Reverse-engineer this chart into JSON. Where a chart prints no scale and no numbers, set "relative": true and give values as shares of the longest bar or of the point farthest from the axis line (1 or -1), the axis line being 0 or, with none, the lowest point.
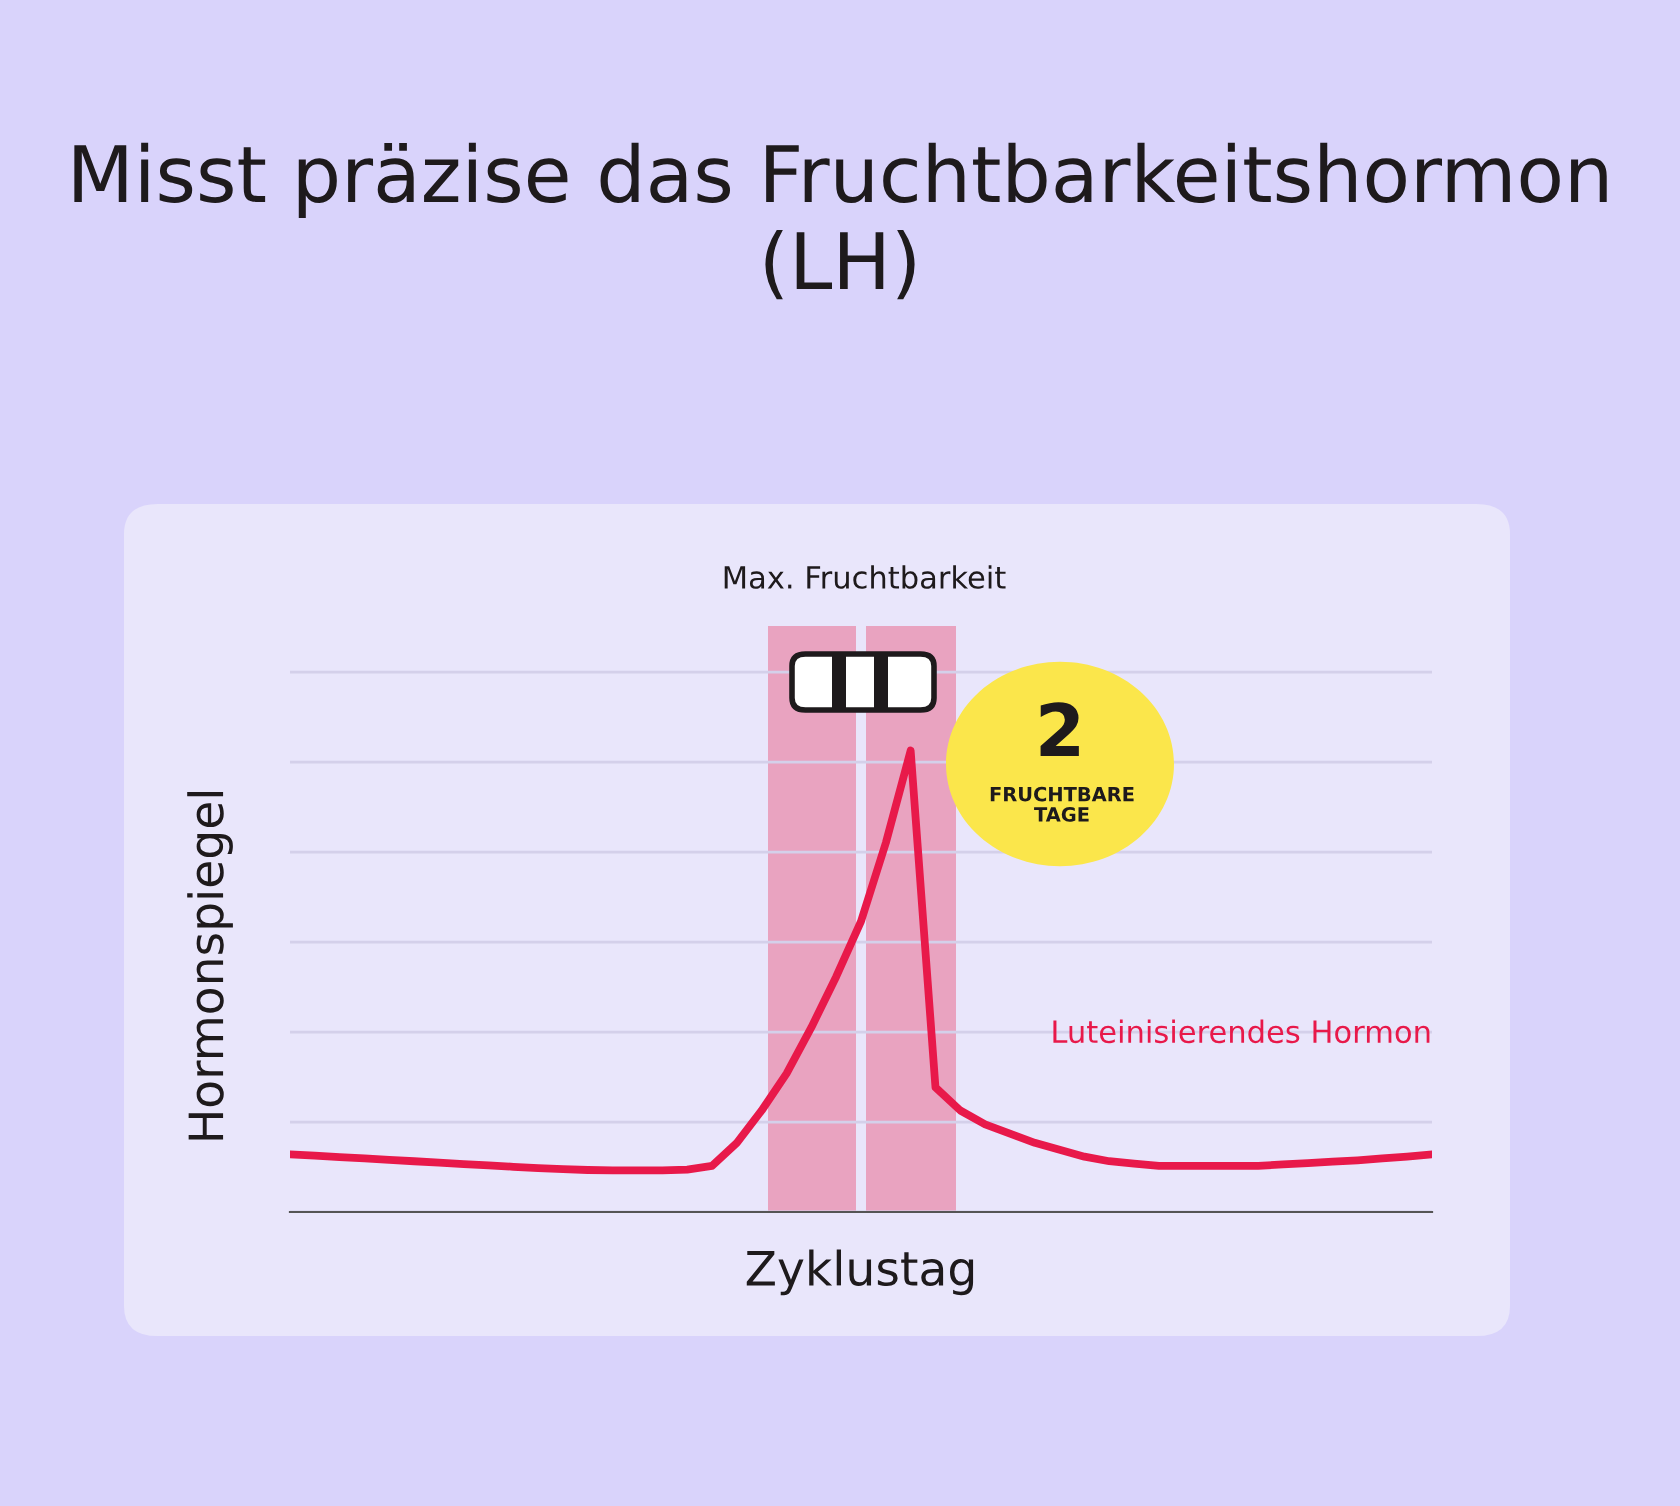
{
  "chart_data": {
    "type": "line",
    "title": "Misst präzise das Fruchtbarkeitshormon (LH)",
    "xlabel": "Zyklustag",
    "ylabel": "Hormonspiegel",
    "relative": true,
    "grid": "y",
    "legend": false,
    "marker": "none",
    "line_style": "solid",
    "categories": [
      null,
      null,
      null,
      null,
      null,
      null,
      null,
      null,
      null,
      null,
      null,
      null,
      null,
      null,
      null,
      null,
      null,
      null,
      null,
      null,
      null,
      null,
      null,
      null,
      null,
      null,
      null,
      null,
      null,
      null,
      null,
      null,
      null,
      null,
      null,
      null,
      null,
      null,
      null,
      null,
      null,
      null,
      null,
      null,
      null,
      null,
      null
    ],
    "series": [
      {
        "name": "Luteinisierendes Hormon",
        "color": "#e8194a",
        "values": [
          0.125,
          0.122,
          0.119,
          0.116,
          0.113,
          0.11,
          0.107,
          0.104,
          0.101,
          0.098,
          0.095,
          0.093,
          0.091,
          0.09,
          0.09,
          0.09,
          0.092,
          0.1,
          0.15,
          0.22,
          0.3,
          0.4,
          0.51,
          0.63,
          0.8,
          1.0,
          0.27,
          0.22,
          0.19,
          0.17,
          0.15,
          0.135,
          0.12,
          0.11,
          0.105,
          0.1,
          0.1,
          0.1,
          0.1,
          0.1,
          0.103,
          0.106,
          0.109,
          0.112,
          0.116,
          0.12,
          0.125
        ]
      }
    ],
    "annotations": [
      "Max. Fruchtbarkeit",
      "2",
      "FRUCHTBARE TAGE"
    ]
  }
}
